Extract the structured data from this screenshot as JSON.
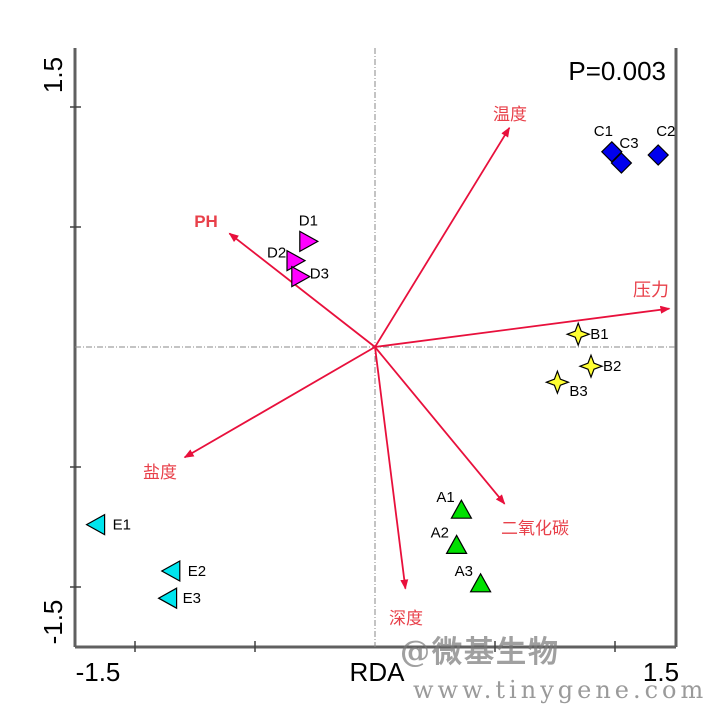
{
  "chart_data": {
    "type": "scatter",
    "subtype": "RDA biplot",
    "title": "",
    "xlabel": "RDA",
    "ylabel": "",
    "annotation": "P=0.003",
    "x_tick_labels": [
      "-1.5",
      "1.5"
    ],
    "y_tick_labels": [
      "1.5",
      "-1.5"
    ],
    "xlim": [
      -1.9,
      1.9
    ],
    "ylim": [
      -1.9,
      1.9
    ],
    "grid": false,
    "reference_lines": "dashed lines at x=0 and y=0",
    "sample_groups": [
      {
        "name": "A",
        "marker": "triangle-up",
        "color": "#00e000",
        "points": [
          {
            "label": "A1",
            "x": 0.54,
            "y": -1.02
          },
          {
            "label": "A2",
            "x": 0.51,
            "y": -1.24
          },
          {
            "label": "A3",
            "x": 0.66,
            "y": -1.48
          }
        ]
      },
      {
        "name": "B",
        "marker": "star4",
        "color": "#ffff33",
        "points": [
          {
            "label": "B1",
            "x": 1.27,
            "y": 0.08
          },
          {
            "label": "B2",
            "x": 1.35,
            "y": -0.12
          },
          {
            "label": "B3",
            "x": 1.14,
            "y": -0.22
          }
        ]
      },
      {
        "name": "C",
        "marker": "diamond",
        "color": "#0000ee",
        "points": [
          {
            "label": "C1",
            "x": 1.48,
            "y": 1.22
          },
          {
            "label": "C3",
            "x": 1.54,
            "y": 1.15
          },
          {
            "label": "C2",
            "x": 1.77,
            "y": 1.2
          }
        ]
      },
      {
        "name": "D",
        "marker": "triangle-right",
        "color": "#ff00ff",
        "points": [
          {
            "label": "D1",
            "x": -0.42,
            "y": 0.66
          },
          {
            "label": "D2",
            "x": -0.5,
            "y": 0.54
          },
          {
            "label": "D3",
            "x": -0.47,
            "y": 0.44
          }
        ]
      },
      {
        "name": "E",
        "marker": "triangle-left",
        "color": "#00e5ee",
        "points": [
          {
            "label": "E1",
            "x": -1.74,
            "y": -1.11
          },
          {
            "label": "E2",
            "x": -1.27,
            "y": -1.4
          },
          {
            "label": "E3",
            "x": -1.29,
            "y": -1.57
          }
        ]
      }
    ],
    "env_vectors": {
      "color": "#e8103c",
      "label_color": "#e8404a",
      "items": [
        {
          "label": "温度",
          "x": 0.84,
          "y": 1.37
        },
        {
          "label": "PH",
          "x": -0.91,
          "y": 0.71
        },
        {
          "label": "压力",
          "x": 1.84,
          "y": 0.24
        },
        {
          "label": "盐度",
          "x": -1.19,
          "y": -0.69
        },
        {
          "label": "二氧化碳",
          "x": 0.81,
          "y": -0.98
        },
        {
          "label": "深度",
          "x": 0.19,
          "y": -1.51
        }
      ]
    }
  },
  "watermark": {
    "brand": "@微基生物",
    "url": "www.tinygene.com"
  }
}
